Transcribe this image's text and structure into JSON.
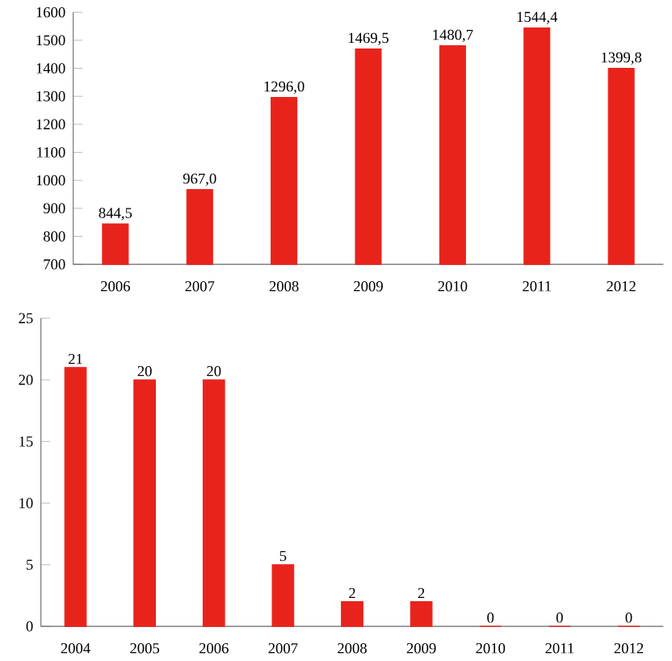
{
  "chart_data": [
    {
      "type": "bar",
      "categories": [
        "2006",
        "2007",
        "2008",
        "2009",
        "2010",
        "2011",
        "2012"
      ],
      "values": [
        844.5,
        967.0,
        1296.0,
        1469.5,
        1480.7,
        1544.4,
        1399.8
      ],
      "value_labels": [
        "844,5",
        "967,0",
        "1296,0",
        "1469,5",
        "1480,7",
        "1544,4",
        "1399,8"
      ],
      "color": "#e8231c",
      "ylim": [
        700,
        1600
      ],
      "yticks": [
        700,
        800,
        900,
        1000,
        1100,
        1200,
        1300,
        1400,
        1500,
        1600
      ],
      "grid": false
    },
    {
      "type": "bar",
      "categories": [
        "2004",
        "2005",
        "2006",
        "2007",
        "2008",
        "2009",
        "2010",
        "2011",
        "2012"
      ],
      "values": [
        21,
        20,
        20,
        5,
        2,
        2,
        0,
        0,
        0
      ],
      "data_labels": true,
      "color": "#e8231c",
      "ylim": [
        0,
        25
      ],
      "yticks": [
        0,
        5,
        10,
        15,
        20,
        25
      ],
      "grid": false
    }
  ]
}
